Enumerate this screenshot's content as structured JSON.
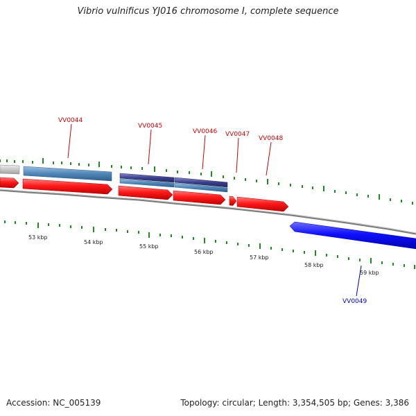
{
  "title": "Vibrio vulnificus YJ016 chromosome I, complete sequence",
  "footer": {
    "accession": "Accession: NC_005139",
    "summary": "Topology: circular; Length: 3,354,505 bp; Genes: 3,386"
  },
  "colors": {
    "forward_cds": "#ff0000",
    "reverse_cds": "#0000ff",
    "steel_feature": "#4f86b8",
    "purple_feature": "#3c3f8c",
    "grey_feature": "#c8c8c8",
    "backbone": "#888888",
    "tick": "#1f8a1f",
    "forward_label": "#cc0000",
    "reverse_label": "#0000cc"
  },
  "scale_labels": [
    "53 kbp",
    "54 kbp",
    "55 kbp",
    "56 kbp",
    "57 kbp",
    "58 kbp",
    "59 kbp"
  ],
  "gene_labels": {
    "forward": [
      "VV0044",
      "VV0045",
      "VV0046",
      "VV0047",
      "VV0048"
    ],
    "reverse": [
      "VV0049"
    ]
  }
}
